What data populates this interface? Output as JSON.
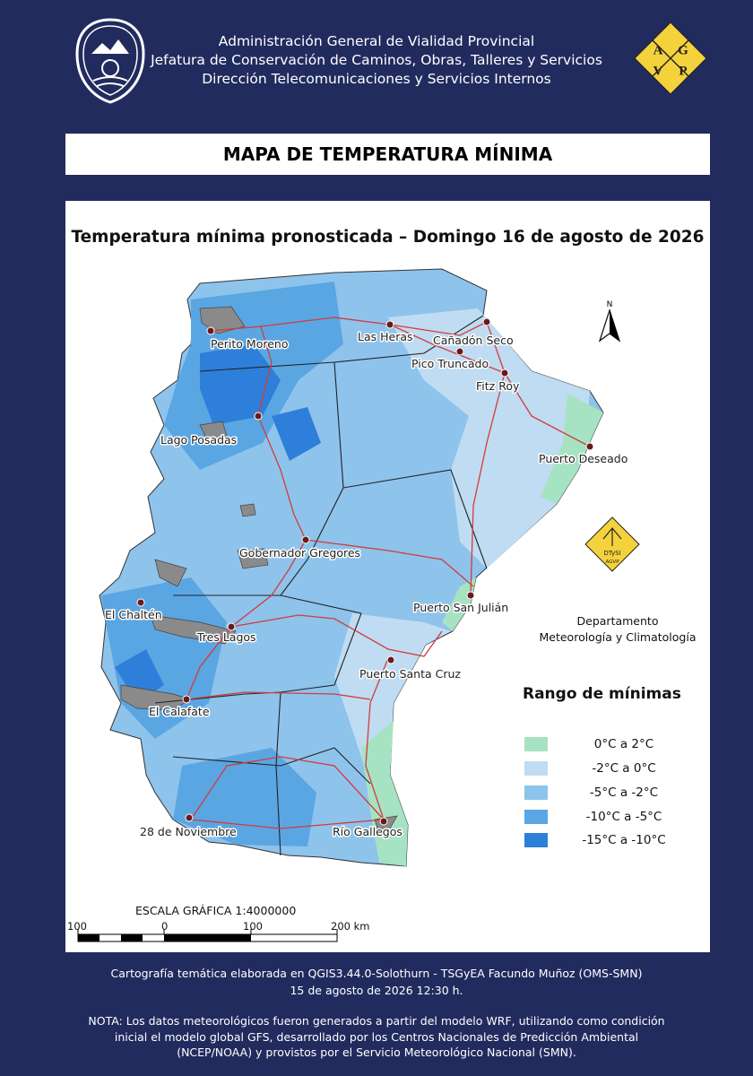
{
  "header": {
    "line1": "Administración General de Vialidad Provincial",
    "line2": "Jefatura de Conservación de Caminos, Obras, Talleres y Servicios",
    "line3": "Dirección Telecomunicaciones y Servicios Internos",
    "logo_letters": [
      "A",
      "G",
      "V",
      "P"
    ]
  },
  "title": "MAPA DE TEMPERATURA MÍNIMA",
  "map": {
    "subtitle": "Temperatura mínima pronosticada – Domingo 16 de agosto de 2026",
    "north_label": "N",
    "cities": [
      {
        "name": "Perito Moreno"
      },
      {
        "name": "Las Heras"
      },
      {
        "name": "Cañadón Seco"
      },
      {
        "name": "Pico Truncado"
      },
      {
        "name": "Fitz Roy"
      },
      {
        "name": "Lago Posadas"
      },
      {
        "name": "Puerto Deseado"
      },
      {
        "name": "Gobernador Gregores"
      },
      {
        "name": "Puerto San Julián"
      },
      {
        "name": "El Chaltén"
      },
      {
        "name": "Tres Lagos"
      },
      {
        "name": "Puerto Santa Cruz"
      },
      {
        "name": "El Calafate"
      },
      {
        "name": "28 de Noviembre"
      },
      {
        "name": "Río Gallegos"
      }
    ]
  },
  "department": {
    "logo_text_top": "DTySI",
    "logo_text_bottom": "AGVP",
    "line1": "Departamento",
    "line2": "Meteorología y Climatología"
  },
  "legend": {
    "title": "Rango de mínimas",
    "items": [
      {
        "label": "0°C a 2°C",
        "color": "#a6e3c2"
      },
      {
        "label": "-2°C a 0°C",
        "color": "#bfdcf2"
      },
      {
        "label": "-5°C a -2°C",
        "color": "#8ec3ec"
      },
      {
        "label": "-10°C a -5°C",
        "color": "#5aa6e3"
      },
      {
        "label": "-15°C a -10°C",
        "color": "#2e7fd9"
      }
    ]
  },
  "scale": {
    "title": "ESCALA GRÁFICA 1:4000000",
    "labels": [
      "100",
      "0",
      "100",
      "200 km"
    ]
  },
  "footer": {
    "credit_line1": "Cartografía temática elaborada en QGIS3.44.0-Solothurn - TSGyEA Facundo Muñoz (OMS-SMN)",
    "credit_line2": "15 de agosto de 2026 12:30 h.",
    "note_line1": "NOTA: Los datos meteorológicos fueron generados a partir del modelo WRF, utilizando como condición",
    "note_line2": "inicial el modelo global GFS, desarrollado por los Centros Nacionales de Predicción Ambiental",
    "note_line3": "(NCEP/NOAA) y provistos por el Servicio Meteorológico Nacional (SMN)."
  }
}
